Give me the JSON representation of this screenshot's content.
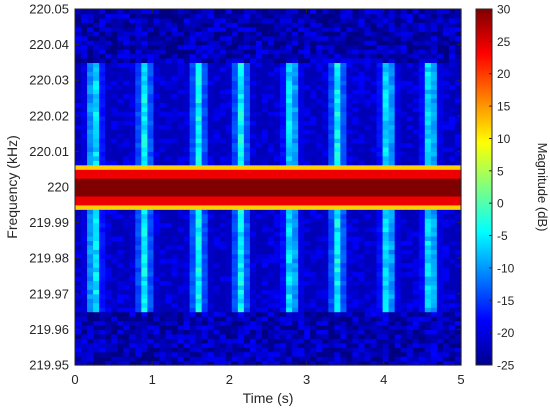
{
  "chart_data": {
    "type": "heatmap",
    "xlabel": "Time (s)",
    "ylabel": "Frequency (kHz)",
    "colorbar_label": "Magnitude (dB)",
    "xlim": [
      0,
      5
    ],
    "ylim": [
      219.95,
      220.05
    ],
    "clim": [
      -25,
      30
    ],
    "colormap": "jet",
    "x_ticks": [
      "0",
      "1",
      "2",
      "3",
      "4",
      "5"
    ],
    "x_tick_values": [
      0,
      1,
      2,
      3,
      4,
      5
    ],
    "y_ticks": [
      "219.95",
      "219.96",
      "219.97",
      "219.98",
      "219.99",
      "220",
      "220.01",
      "220.02",
      "220.03",
      "220.04",
      "220.05"
    ],
    "y_tick_values": [
      219.95,
      219.96,
      219.97,
      219.98,
      219.99,
      220.0,
      220.01,
      220.02,
      220.03,
      220.04,
      220.05
    ],
    "colorbar_ticks": [
      "30",
      "25",
      "20",
      "15",
      "10",
      "5",
      "0",
      "-5",
      "-10",
      "-15",
      "-20",
      "-25"
    ],
    "colorbar_tick_values": [
      30,
      25,
      20,
      15,
      10,
      5,
      0,
      -5,
      -10,
      -15,
      -20,
      -25
    ],
    "carrier_frequency_kHz": 220.0,
    "carrier_peak_dB": 30,
    "sideband_peak_dB": -3,
    "background_dB": -22,
    "sideband_frequency_range_kHz": [
      219.965,
      220.035
    ],
    "sideband_burst_times_s": [
      0.25,
      0.9,
      1.6,
      2.15,
      2.8,
      3.4,
      4.05,
      4.6
    ]
  }
}
